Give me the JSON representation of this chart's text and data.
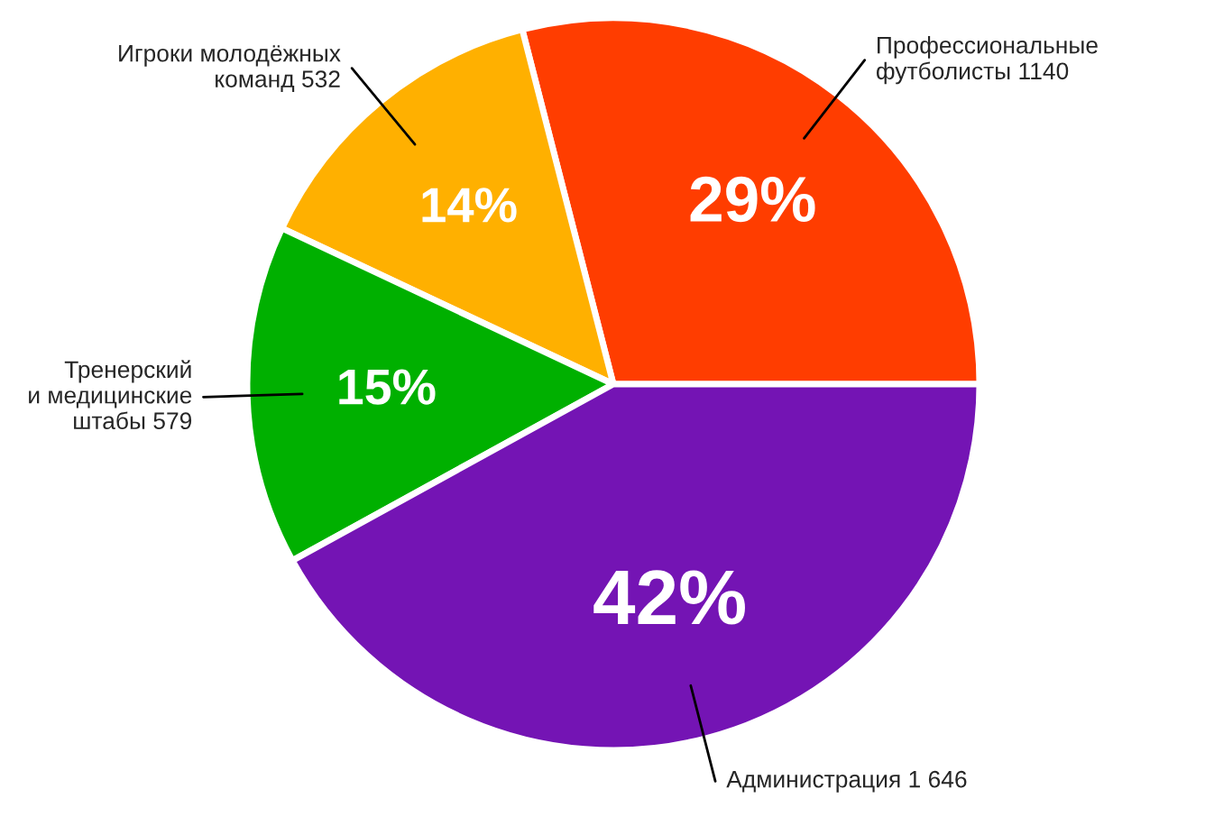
{
  "chart_data": {
    "type": "pie",
    "categories": [
      "Профессиональные\nфутболисты 1140",
      "Игроки молодёжных\nкоманд 532",
      "Тренерский\nи медицинские\nштабы 579",
      "Администрация 1 646"
    ],
    "values": [
      29,
      14,
      15,
      42
    ],
    "value_labels": [
      "29%",
      "14%",
      "15%",
      "42%"
    ],
    "colors": [
      "#ff3d00",
      "#ffb000",
      "#00b000",
      "#7414b4"
    ]
  }
}
